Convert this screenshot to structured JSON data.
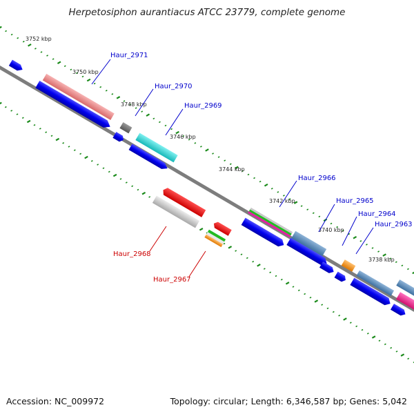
{
  "title": "Herpetosiphon aurantiacus ATCC 23779, complete genome",
  "footer": {
    "accession": "Accession: NC_009972",
    "summary": "Topology: circular; Length: 6,346,587 bp; Genes: 5,042"
  },
  "colors": {
    "backbone": "#808080",
    "tick": "#1a8a1a",
    "forward_label": "#0000cc",
    "reverse_label": "#cc0000",
    "cds": "#0000ee"
  },
  "ticks": [
    "3752 kbp",
    "3750 kbp",
    "3748 kbp",
    "3746 kbp",
    "3744 kbp",
    "3742 kbp",
    "3740 kbp",
    "3738 kbp"
  ],
  "genes_forward": [
    "Haur_2971",
    "Haur_2970",
    "Haur_2969",
    "Haur_2966",
    "Haur_2965",
    "Haur_2964",
    "Haur_2963"
  ],
  "genes_reverse": [
    "Haur_2968",
    "Haur_2967"
  ]
}
